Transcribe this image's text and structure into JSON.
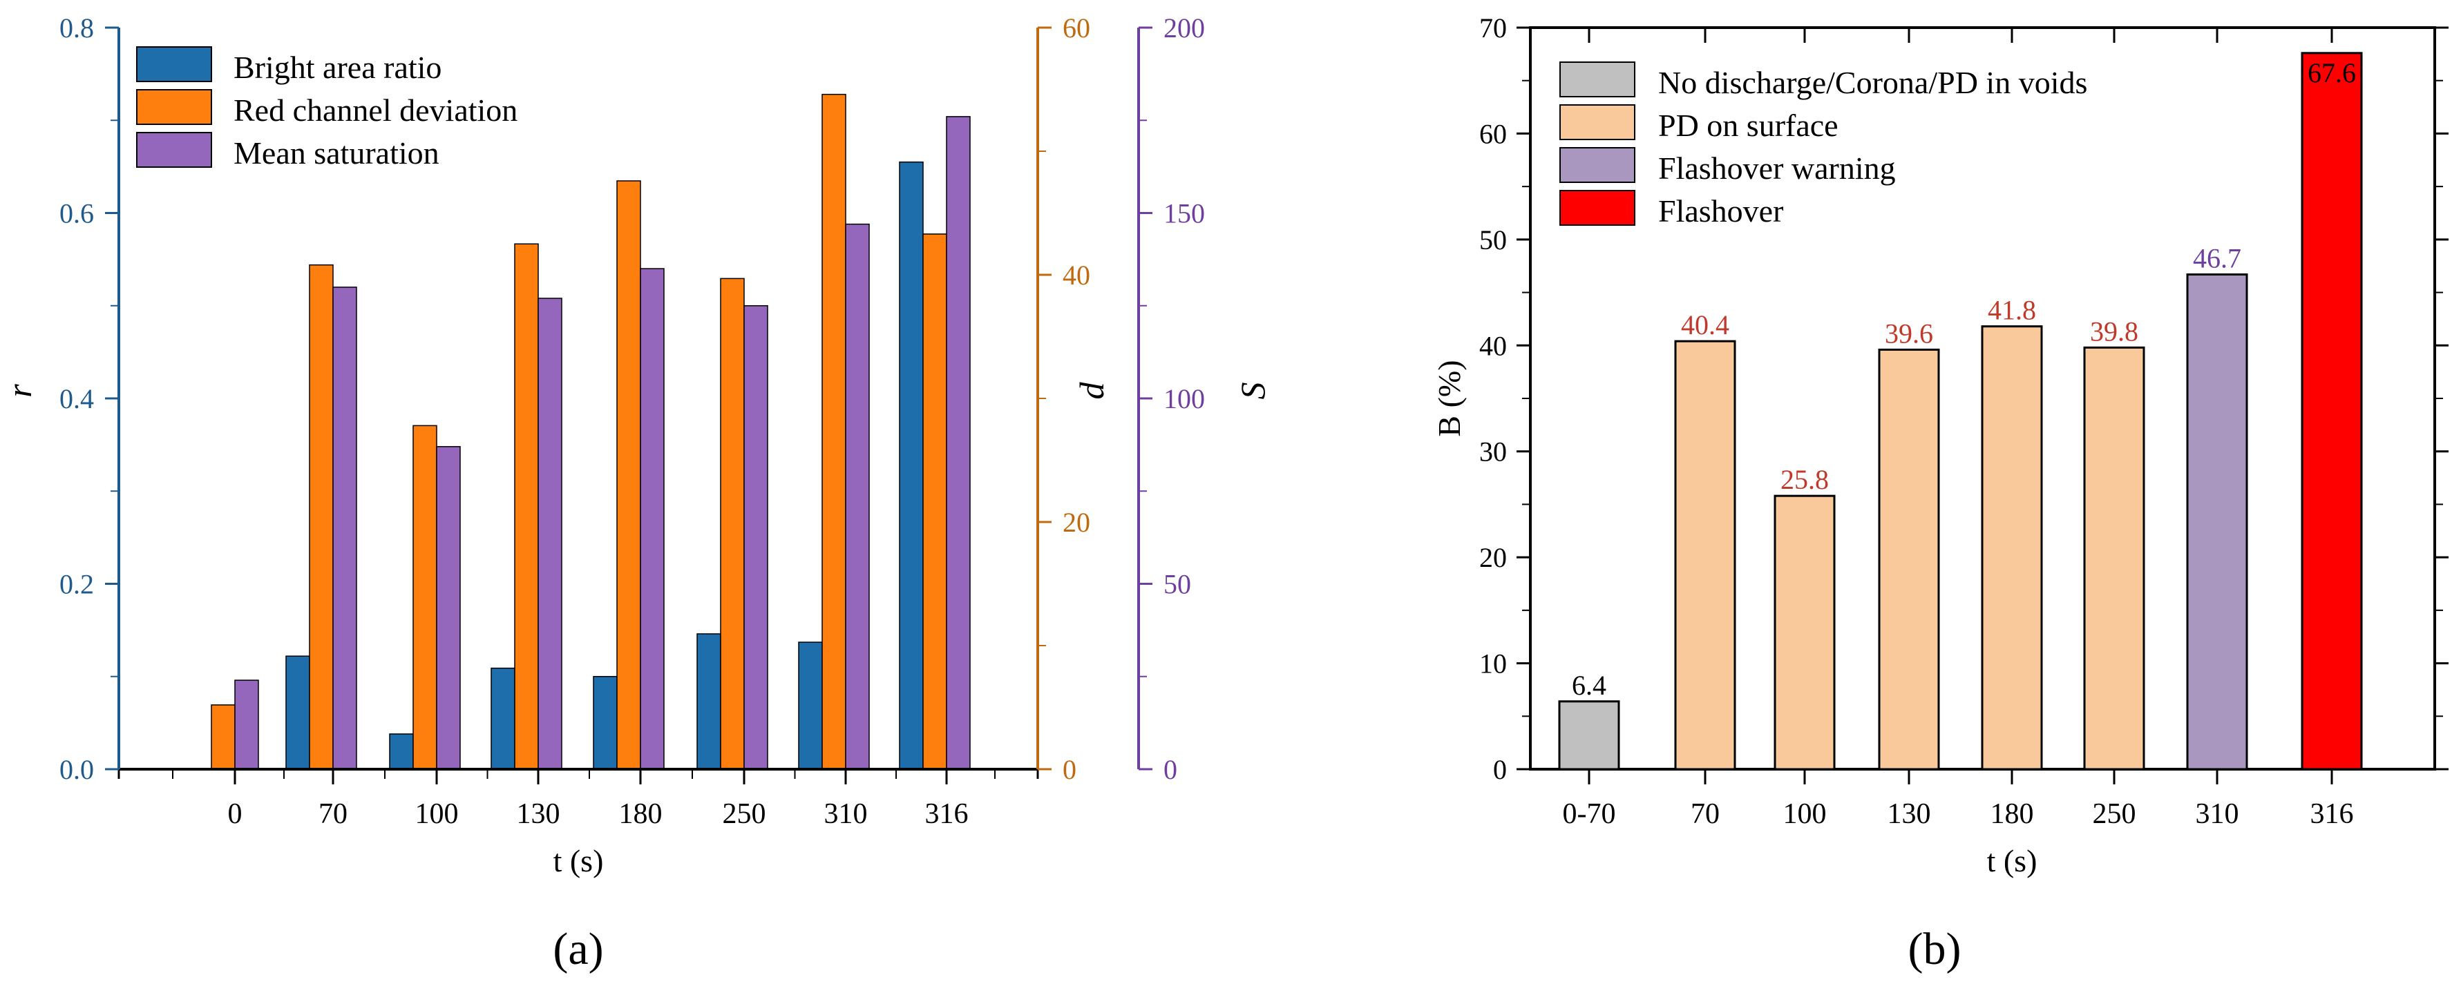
{
  "chart_data": [
    {
      "panel_label": "(a)",
      "type": "bar",
      "categories": [
        "0",
        "70",
        "100",
        "130",
        "180",
        "250",
        "310",
        "316"
      ],
      "xlabel": "t (s)",
      "series": [
        {
          "name": "Bright area ratio",
          "axis": "r",
          "color": "#1F6EAC",
          "values": [
            0,
            0.122,
            0.038,
            0.109,
            0.1,
            0.146,
            0.137,
            0.655
          ]
        },
        {
          "name": "Red channel deviation",
          "axis": "d",
          "color": "#FF7F0E",
          "values": [
            5.2,
            40.8,
            27.8,
            42.5,
            47.6,
            39.7,
            54.6,
            43.3
          ]
        },
        {
          "name": "Mean saturation",
          "axis": "S",
          "color": "#9467BD",
          "values": [
            24,
            130,
            87,
            127,
            135,
            125,
            147,
            176
          ]
        }
      ],
      "axes": [
        {
          "label": "r",
          "side": "left",
          "ylim": [
            0,
            0.8
          ],
          "ticks": [
            "0.0",
            "0.2",
            "0.4",
            "0.6",
            "0.8"
          ],
          "color": "#1F5A8C"
        },
        {
          "label": "d",
          "side": "right-inner",
          "ylim": [
            0,
            60
          ],
          "ticks": [
            "0",
            "20",
            "40",
            "60"
          ],
          "color": "#C06A10"
        },
        {
          "label": "S",
          "side": "right-outer",
          "ylim": [
            0,
            200
          ],
          "ticks": [
            "0",
            "50",
            "100",
            "150",
            "200"
          ],
          "color": "#6E3F9E"
        }
      ],
      "legend": {
        "placement": "top-left"
      }
    },
    {
      "panel_label": "(b)",
      "type": "bar",
      "categories": [
        "0-70",
        "70",
        "100",
        "130",
        "180",
        "250",
        "310",
        "316"
      ],
      "values": [
        6.4,
        40.4,
        25.8,
        39.6,
        41.8,
        39.8,
        46.7,
        67.6
      ],
      "data_labels": [
        "6.4",
        "40.4",
        "25.8",
        "39.6",
        "41.8",
        "39.8",
        "46.7",
        "67.6"
      ],
      "classes": [
        "none",
        "surface",
        "surface",
        "surface",
        "surface",
        "surface",
        "warning",
        "flashover"
      ],
      "xlabel": "t (s)",
      "ylabel": "B (%)",
      "ylim": [
        0,
        70
      ],
      "yticks": [
        "0",
        "10",
        "20",
        "30",
        "40",
        "50",
        "60",
        "70"
      ],
      "legend": {
        "placement": "top-left",
        "entries": [
          {
            "key": "none",
            "label": "No discharge/Corona/PD in voids",
            "color": "#C0C0C0"
          },
          {
            "key": "surface",
            "label": "PD on surface",
            "color": "#F9C89B"
          },
          {
            "key": "warning",
            "label": "Flashover warning",
            "color": "#A997C0"
          },
          {
            "key": "flashover",
            "label": "Flashover",
            "color": "#FF0000"
          }
        ]
      },
      "label_colors": {
        "none": "#000000",
        "surface": "#C0392B",
        "warning": "#6E3F9E",
        "flashover": "#000000"
      }
    }
  ]
}
